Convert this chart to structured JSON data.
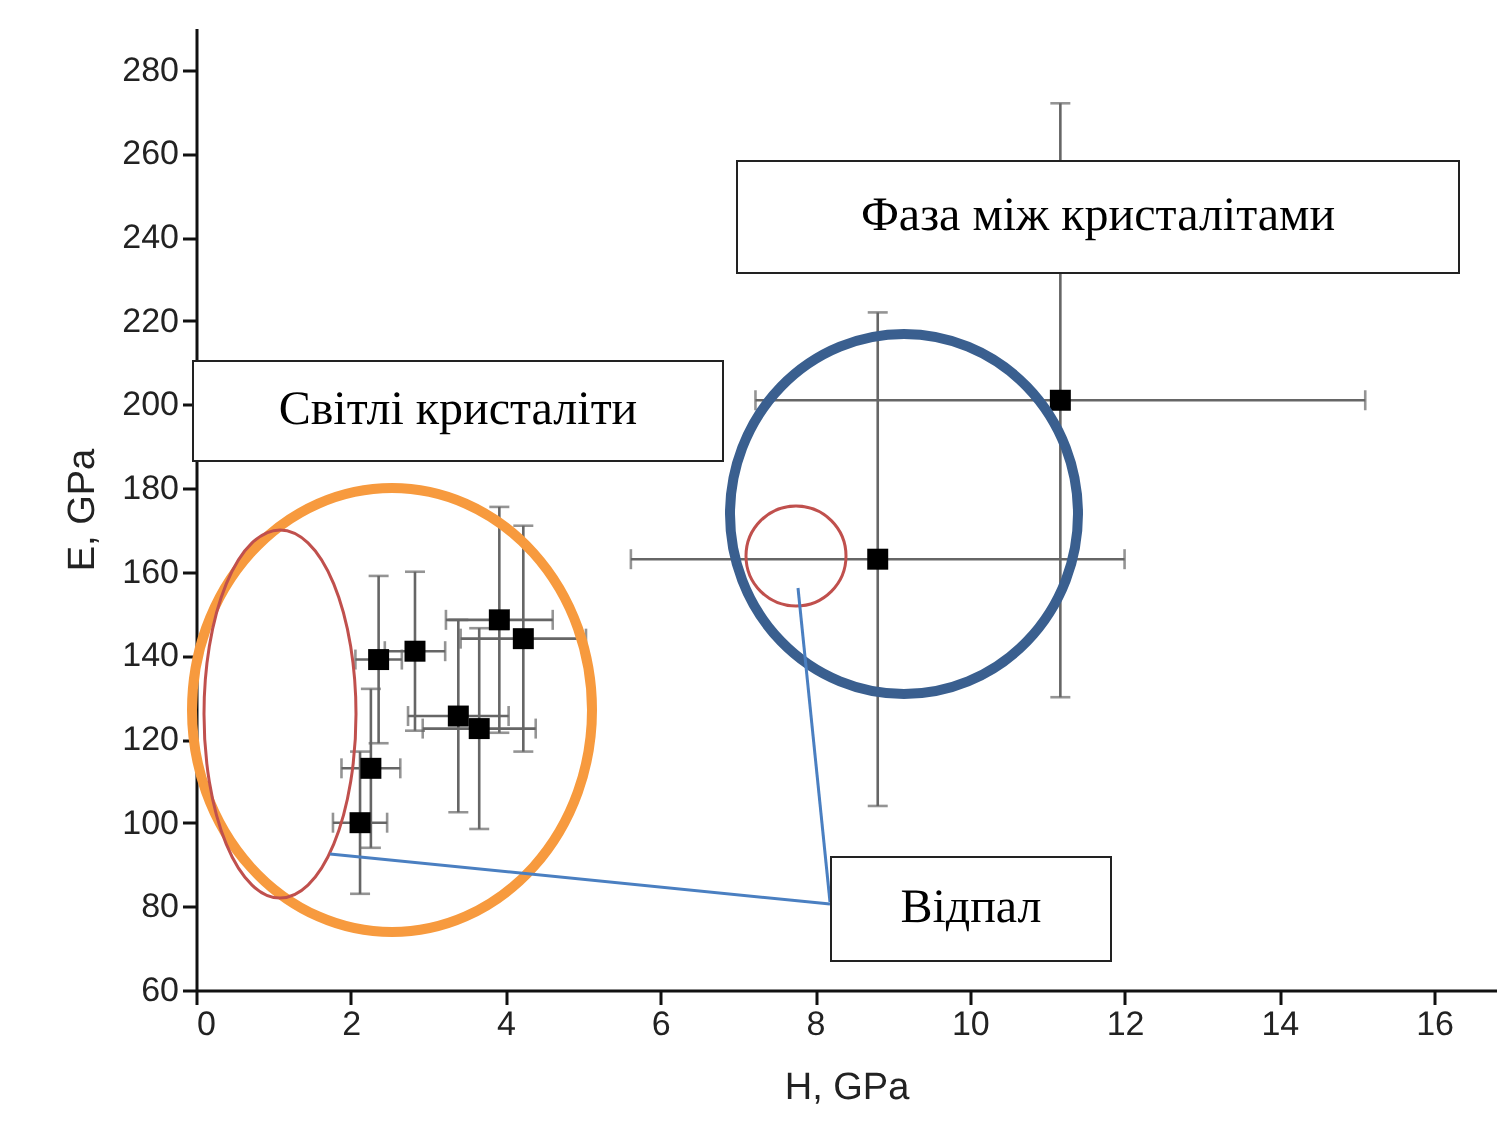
{
  "chart_data": {
    "type": "scatter",
    "xlabel": "H, GPa",
    "ylabel": "E, GPa",
    "xlim": [
      0,
      16.8
    ],
    "ylim": [
      60,
      290
    ],
    "xticks": [
      0,
      2,
      4,
      6,
      8,
      10,
      12,
      14,
      16
    ],
    "yticks": [
      60,
      80,
      100,
      120,
      140,
      160,
      180,
      200,
      220,
      240,
      260,
      280
    ],
    "grid": false,
    "marker": "square",
    "series": [
      {
        "color": "#000000",
        "x": [
          2.12,
          2.26,
          2.36,
          2.83,
          3.39,
          3.66,
          3.92,
          4.23,
          8.81,
          11.17
        ],
        "values": [
          100,
          113,
          139,
          141,
          125.5,
          122.5,
          148.5,
          144,
          163,
          201
        ],
        "errors": [
          17,
          19,
          20,
          19,
          23,
          24,
          27,
          27,
          59,
          71
        ],
        "xerrors": [
          0.35,
          0.38,
          0.3,
          0.39,
          0.65,
          0.73,
          0.69,
          0.81,
          3.19,
          3.94
        ]
      }
    ],
    "annotations": [
      "Світлі кристаліти",
      "Фаза між кристалітами",
      "Відпал"
    ]
  }
}
